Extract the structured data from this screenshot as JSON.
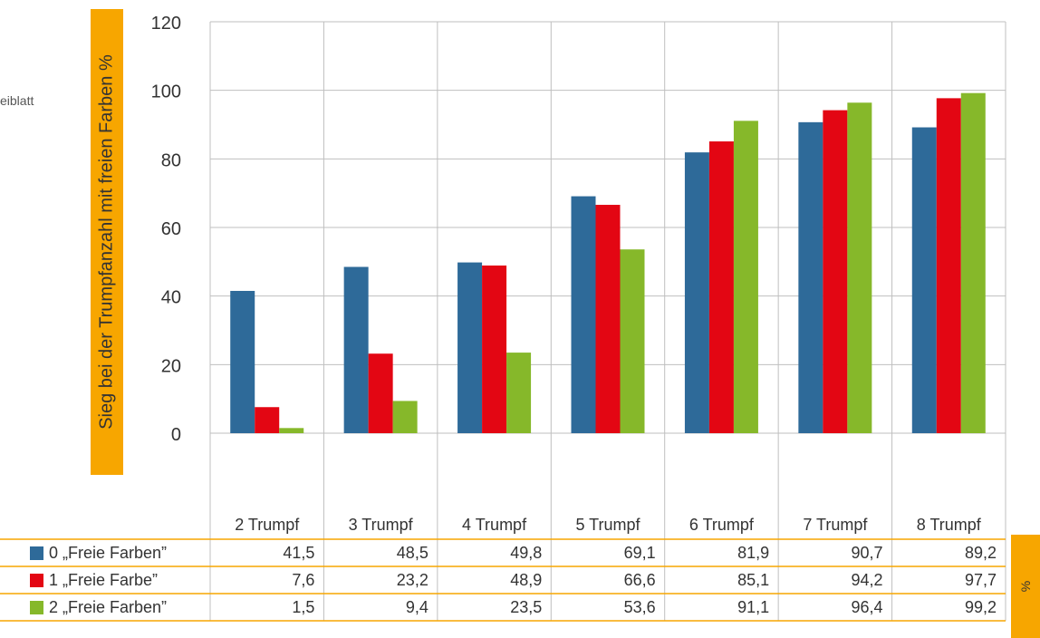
{
  "page": {
    "left_crop_text": "eiblatt"
  },
  "chart_data": {
    "type": "bar",
    "title": "",
    "ylabel": "Sieg bei der Trumpfanzahl mit freien Farben %",
    "ylim": [
      0,
      120
    ],
    "yticks": [
      0,
      20,
      40,
      60,
      80,
      100,
      120
    ],
    "categories": [
      "2 Trumpf",
      "3 Trumpf",
      "4 Trumpf",
      "5 Trumpf",
      "6 Trumpf",
      "7 Trumpf",
      "8 Trumpf"
    ],
    "series": [
      {
        "name": "0 „Freie Farben”",
        "color": "#2e6a99",
        "values": [
          41.5,
          48.5,
          49.8,
          69.1,
          81.9,
          90.7,
          89.2
        ]
      },
      {
        "name": "1   „Freie Farbe”",
        "color": "#e30613",
        "values": [
          7.6,
          23.2,
          48.9,
          66.6,
          85.1,
          94.2,
          97.7
        ]
      },
      {
        "name": "2 „Freie Farben”",
        "color": "#86b82a",
        "values": [
          1.5,
          9.4,
          23.5,
          53.6,
          91.1,
          96.4,
          99.2
        ]
      }
    ],
    "data_table": {
      "rows": [
        [
          "41,5",
          "48,5",
          "49,8",
          "69,1",
          "81,9",
          "90,7",
          "89,2"
        ],
        [
          "7,6",
          "23,2",
          "48,9",
          "66,6",
          "85,1",
          "94,2",
          "97,7"
        ],
        [
          "1,5",
          "9,4",
          "23,5",
          "53,6",
          "91,1",
          "96,4",
          "99,2"
        ]
      ]
    },
    "grid": true,
    "legend": "table",
    "unit_tab": "%",
    "colors": {
      "accent": "#f7a600",
      "grid": "#bfbfbf"
    }
  }
}
